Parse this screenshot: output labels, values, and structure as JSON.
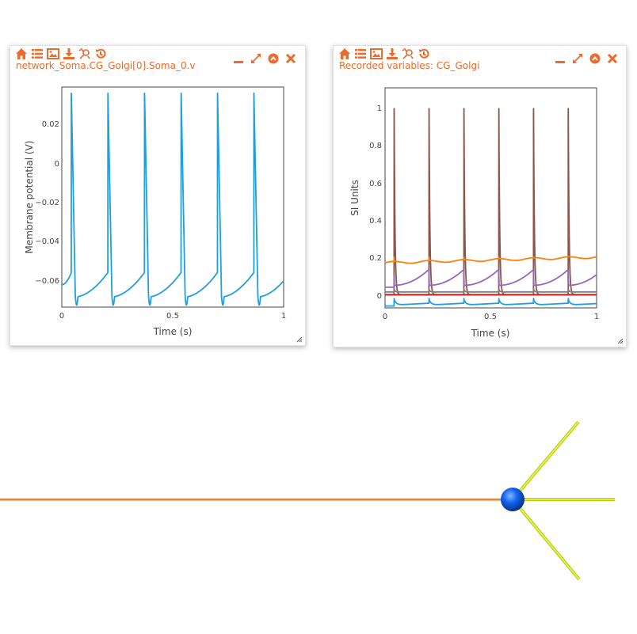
{
  "theme": {
    "accent": "#ec6a2c",
    "trace_blue": "#1f9fdd"
  },
  "toolbar_icons": [
    "home-icon",
    "list-icon",
    "image-icon",
    "download-icon",
    "zoom-icon",
    "history-icon"
  ],
  "window_controls": [
    "minimize-icon",
    "maximize-icon",
    "collapse-icon",
    "close-icon"
  ],
  "widget1": {
    "title": "network_Soma.CG_Golgi[0].Soma_0.v",
    "xlabel": "Time (s)",
    "ylabel": "Membrane potential (V)",
    "xticks": [
      "0",
      "0.5",
      "1"
    ],
    "yticks": [
      "0.02",
      "0",
      "−0.02",
      "−0.04",
      "−0.06"
    ]
  },
  "widget2": {
    "title": "Recorded variables: CG_Golgi",
    "xlabel": "Time (s)",
    "ylabel": "SI Units",
    "xticks": [
      "0",
      "0.5",
      "1"
    ],
    "yticks": [
      "1",
      "0.8",
      "0.6",
      "0.4",
      "0.2",
      "0"
    ]
  },
  "chart_data": [
    {
      "type": "line",
      "title": "network_Soma.CG_Golgi[0].Soma_0.v",
      "xlabel": "Time (s)",
      "ylabel": "Membrane potential (V)",
      "xlim": [
        0,
        1
      ],
      "ylim": [
        -0.072,
        0.036
      ],
      "grid": false,
      "series": [
        {
          "color": "#1f9fdd",
          "spike_times": [
            0.043,
            0.208,
            0.373,
            0.538,
            0.702,
            0.866
          ],
          "spike_peak": 0.033,
          "trough": -0.067,
          "pre_spike": -0.055,
          "start_value": -0.061,
          "end_value": -0.058
        }
      ]
    },
    {
      "type": "line",
      "title": "Recorded variables: CG_Golgi",
      "xlabel": "Time (s)",
      "ylabel": "SI Units",
      "xlim": [
        0,
        1
      ],
      "ylim": [
        -0.07,
        1.1
      ],
      "grid": false,
      "spike_times": [
        0.043,
        0.208,
        0.373,
        0.538,
        0.702,
        0.866
      ],
      "series": [
        {
          "color": "#8c564b",
          "baseline": 0.0,
          "peak": 0.99
        },
        {
          "color": "#9467bd",
          "baseline": 0.04,
          "peak": 0.1
        },
        {
          "color": "#ff7f0e",
          "baseline": 0.17,
          "peak": 0.2
        },
        {
          "color": "#1f9fdd",
          "baseline": -0.06,
          "peak": -0.02
        },
        {
          "color": "#d62728",
          "baseline": 0.0,
          "peak": 0.0
        },
        {
          "color": "#7f7f7f",
          "baseline": 0.015,
          "peak": 0.03
        }
      ]
    }
  ],
  "morphology": {
    "axon_color": "#e27b2c",
    "dendrite_color": "#c8e01a",
    "soma_color": "#1565f0"
  }
}
